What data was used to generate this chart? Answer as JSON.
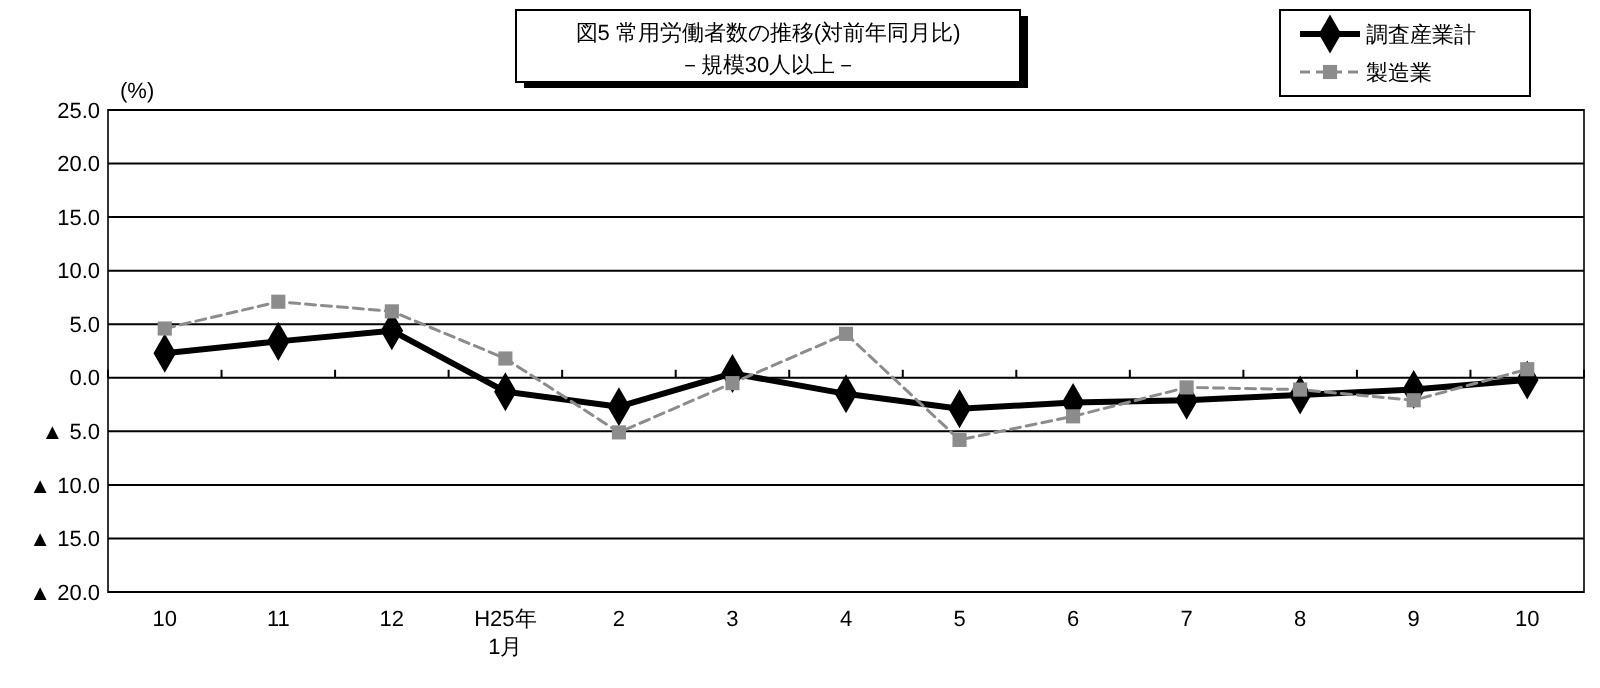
{
  "chart_data": {
    "type": "line",
    "title": "図5  常用労働者数の推移(対前年同月比)",
    "subtitle": "－規模30人以上－",
    "ylabel": "(%)",
    "categories": [
      "10",
      "11",
      "12",
      "H25年\n1月",
      "2",
      "3",
      "4",
      "5",
      "6",
      "7",
      "8",
      "9",
      "10"
    ],
    "series": [
      {
        "name": "調査産業計",
        "color": "#000000",
        "marker": "diamond",
        "line_style": "solid",
        "values": [
          2.3,
          3.4,
          4.4,
          -1.3,
          -2.7,
          0.4,
          -1.5,
          -2.9,
          -2.3,
          -2.1,
          -1.6,
          -1.1,
          -0.2
        ]
      },
      {
        "name": "製造業",
        "color": "#8c8c8c",
        "marker": "square",
        "line_style": "dashed",
        "values": [
          4.6,
          7.1,
          6.2,
          1.8,
          -5.1,
          -0.5,
          4.1,
          -5.8,
          -3.6,
          -0.9,
          -1.1,
          -2.1,
          0.8
        ]
      }
    ],
    "ylim": [
      -20,
      25
    ],
    "yticks": [
      {
        "value": -20,
        "label": "▲ 20.0"
      },
      {
        "value": -15,
        "label": "▲ 15.0"
      },
      {
        "value": -10,
        "label": "▲ 10.0"
      },
      {
        "value": -5,
        "label": "▲ 5.0"
      },
      {
        "value": 0,
        "label": "0.0"
      },
      {
        "value": 5,
        "label": "5.0"
      },
      {
        "value": 10,
        "label": "10.0"
      },
      {
        "value": 15,
        "label": "15.0"
      },
      {
        "value": 20,
        "label": "20.0"
      },
      {
        "value": 25,
        "label": "25.0"
      }
    ],
    "grid": "y",
    "legend": "top right"
  }
}
